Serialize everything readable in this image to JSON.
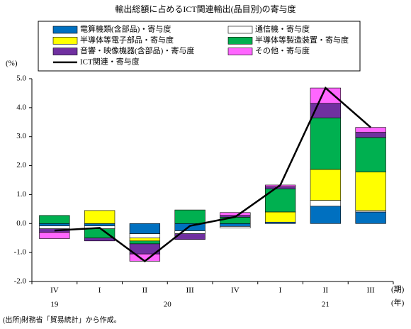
{
  "chart_data": {
    "type": "bar",
    "stacked": true,
    "title": "輸出総額に占めるICT関連輸出(品目別)の寄与度",
    "y_unit": "(%)",
    "x_unit": "(期)",
    "group_unit": "(年)",
    "note": "(出所)財務省「貿易統計」から作成。",
    "categories": [
      "IV",
      "I",
      "II",
      "III",
      "IV",
      "I",
      "II",
      "III"
    ],
    "groups": [
      {
        "label": "19",
        "span": 1
      },
      {
        "label": "20",
        "span": 4
      },
      {
        "label": "21",
        "span": 3
      }
    ],
    "ylim": [
      -2,
      5
    ],
    "yticks": [
      {
        "value": -2,
        "label": "-2.0"
      },
      {
        "value": -1,
        "label": "-1.0"
      },
      {
        "value": 0,
        "label": "0.0"
      },
      {
        "value": 1,
        "label": "1.0"
      },
      {
        "value": 2,
        "label": "2.0"
      },
      {
        "value": 3,
        "label": "3.0"
      },
      {
        "value": 4,
        "label": "4.0"
      },
      {
        "value": 5,
        "label": "5.0"
      }
    ],
    "series": [
      {
        "name": "電算機類(含部品)・寄与度",
        "color": "#0070c0",
        "values": [
          -0.08,
          -0.08,
          -0.35,
          -0.25,
          -0.1,
          0.05,
          0.6,
          0.4
        ]
      },
      {
        "name": "通信機・寄与度",
        "color": "#ffffff",
        "values": [
          -0.1,
          -0.1,
          -0.15,
          -0.1,
          -0.05,
          0,
          0.2,
          0.05
        ]
      },
      {
        "name": "半導体等電子部品・寄与度",
        "color": "#ffff00",
        "values": [
          0,
          0.45,
          -0.1,
          0,
          0,
          0.35,
          1.07,
          1.33
        ]
      },
      {
        "name": "半導体等製造装置・寄与度",
        "color": "#00b050",
        "values": [
          0.28,
          -0.32,
          -0.1,
          0.47,
          0.22,
          0.8,
          1.78,
          1.19
        ]
      },
      {
        "name": "音響・映像機器(含部品)・寄与度",
        "color": "#7030a0",
        "values": [
          -0.12,
          -0.1,
          -0.35,
          -0.2,
          0.06,
          0.07,
          0.5,
          0.18
        ]
      },
      {
        "name": "その他・寄与度",
        "color": "#ff66ff",
        "values": [
          -0.22,
          0,
          -0.25,
          0,
          0.1,
          0.06,
          0.53,
          0.17
        ]
      },
      {
        "name": "ICT関連・寄与度",
        "color": "#000000",
        "type": "line",
        "values": [
          -0.24,
          -0.15,
          -1.3,
          -0.08,
          0.23,
          1.33,
          4.68,
          3.32
        ]
      }
    ]
  }
}
